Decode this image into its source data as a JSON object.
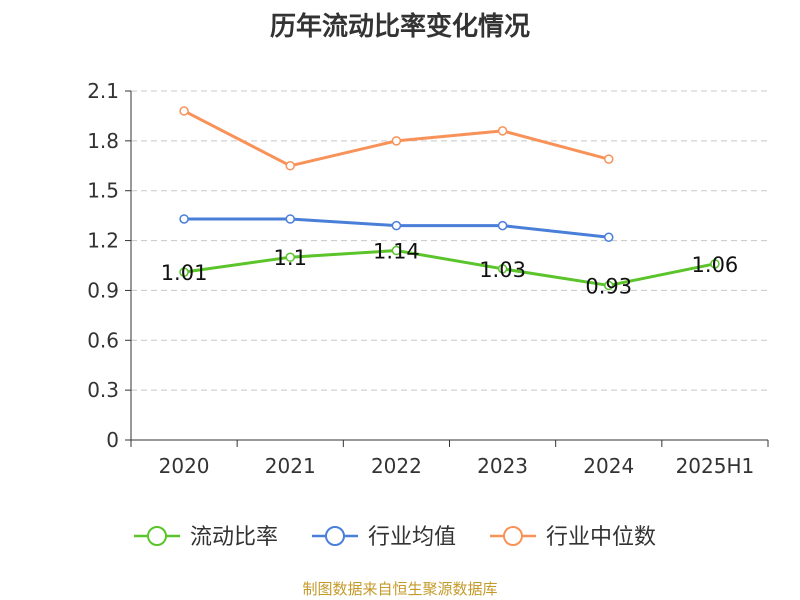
{
  "chart_data": {
    "type": "line",
    "title": "历年流动比率变化情况",
    "categories": [
      "2020",
      "2021",
      "2022",
      "2023",
      "2024",
      "2025H1"
    ],
    "ylim": [
      0,
      2.1
    ],
    "yticks": [
      "0",
      "0.3",
      "0.6",
      "0.9",
      "1.2",
      "1.5",
      "1.8",
      "2.1"
    ],
    "grid": true,
    "legend_position": "bottom",
    "series": [
      {
        "name": "流动比率",
        "color": "#5ac42a",
        "values": [
          1.01,
          1.1,
          1.14,
          1.03,
          0.93,
          1.06
        ],
        "labels": [
          "1.01",
          "1.1",
          "1.14",
          "1.03",
          "0.93",
          "1.06"
        ]
      },
      {
        "name": "行业均值",
        "color": "#4a7fd9",
        "values": [
          1.33,
          1.33,
          1.29,
          1.29,
          1.22,
          null
        ]
      },
      {
        "name": "行业中位数",
        "color": "#f89258",
        "values": [
          1.98,
          1.65,
          1.8,
          1.86,
          1.69,
          null
        ]
      }
    ]
  },
  "source": "制图数据来自恒生聚源数据库"
}
